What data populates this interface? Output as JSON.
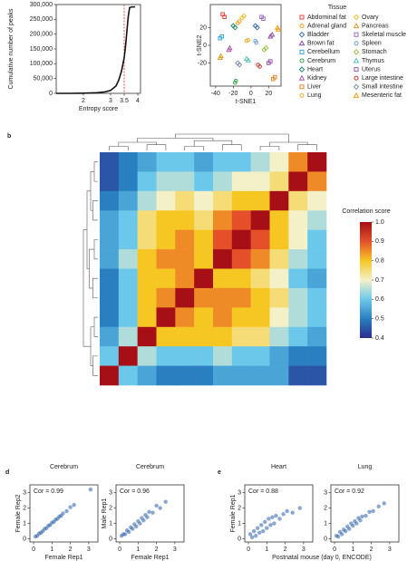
{
  "chart_data": [
    {
      "type": "line",
      "x_label": "Entropy score",
      "y_label": "Cumulative number of peaks",
      "x": [
        1,
        1.5,
        2,
        2.5,
        2.8,
        3,
        3.2,
        3.3,
        3.4,
        3.5,
        3.55,
        3.6,
        3.65,
        3.7,
        3.8,
        3.9
      ],
      "y": [
        0,
        0,
        500,
        2000,
        5000,
        10000,
        25000,
        45000,
        75000,
        120000,
        160000,
        210000,
        260000,
        290000,
        292000,
        292000
      ],
      "color": "#111111",
      "xlim": [
        1,
        4.1
      ],
      "ylim": [
        0,
        300000
      ],
      "xticks": [
        2,
        3,
        3.5,
        4
      ],
      "yticks": [
        0,
        {
          "value": 50000,
          "label": "50,000"
        },
        {
          "value": 100000,
          "label": "100,000"
        },
        {
          "value": 150000,
          "label": "150,000"
        },
        {
          "value": 200000,
          "label": "200,000"
        },
        {
          "value": 250000,
          "label": "250,000"
        },
        {
          "value": 300000,
          "label": "300,000"
        }
      ],
      "vline": 3.5,
      "vline_color": "#e0402a"
    },
    {
      "type": "scatter",
      "x_label": "t-SNE1",
      "y_label": "t-SNE2",
      "legend_title": "Tissue",
      "xlim": [
        -46,
        34
      ],
      "ylim": [
        -46,
        46
      ],
      "xticks": [
        -40,
        -20,
        0,
        20
      ],
      "yticks": [
        -20,
        0,
        20
      ],
      "series": [
        {
          "name": "Abdominal fat",
          "color": "#e8423f",
          "marker": "square",
          "x": [
            -32,
            -30
          ],
          "y": [
            35,
            32
          ]
        },
        {
          "name": "Adrenal gland",
          "color": "#f4a11f",
          "marker": "circle",
          "x": [
            -15,
            -13
          ],
          "y": [
            25,
            27
          ]
        },
        {
          "name": "Bladder",
          "color": "#3e6fb0",
          "marker": "diamond",
          "x": [
            5,
            7
          ],
          "y": [
            22,
            20
          ]
        },
        {
          "name": "Brown fat",
          "color": "#8c4fa0",
          "marker": "triangle",
          "x": [
            22,
            24
          ],
          "y": [
            10,
            12
          ]
        },
        {
          "name": "Cerebellum",
          "color": "#3aa6dd",
          "marker": "square",
          "x": [
            -35,
            -33
          ],
          "y": [
            8,
            10
          ]
        },
        {
          "name": "Cerebrum",
          "color": "#3aa655",
          "marker": "circle",
          "x": [
            -18,
            -17
          ],
          "y": [
            -42,
            -40
          ]
        },
        {
          "name": "Heart",
          "color": "#1f8a70",
          "marker": "diamond",
          "x": [
            -20,
            -18
          ],
          "y": [
            22,
            20
          ]
        },
        {
          "name": "Kidney",
          "color": "#a45ca8",
          "marker": "triangle",
          "x": [
            -25,
            -24
          ],
          "y": [
            -5,
            -3
          ]
        },
        {
          "name": "Liver",
          "color": "#e08a2b",
          "marker": "square",
          "x": [
            25,
            27
          ],
          "y": [
            -38,
            -36
          ]
        },
        {
          "name": "Lung",
          "color": "#f0b030",
          "marker": "circle",
          "x": [
            -5,
            -3
          ],
          "y": [
            5,
            6
          ]
        },
        {
          "name": "Ovary",
          "color": "#f2c12e",
          "marker": "diamond",
          "x": [
            -8,
            -10
          ],
          "y": [
            33,
            31
          ]
        },
        {
          "name": "Pancreas",
          "color": "#d9a02c",
          "marker": "triangle",
          "x": [
            -35,
            -34
          ],
          "y": [
            -14,
            -12
          ]
        },
        {
          "name": "Skeletal muscle",
          "color": "#9a6fc0",
          "marker": "square",
          "x": [
            12,
            14
          ],
          "y": [
            32,
            30
          ]
        },
        {
          "name": "Spleen",
          "color": "#6fa0d0",
          "marker": "circle",
          "x": [
            5,
            6
          ],
          "y": [
            5,
            3
          ]
        },
        {
          "name": "Stomach",
          "color": "#9ec04a",
          "marker": "diamond",
          "x": [
            15,
            17
          ],
          "y": [
            -5,
            -3
          ]
        },
        {
          "name": "Thymus",
          "color": "#5fc0c0",
          "marker": "triangle",
          "x": [
            -5,
            -3
          ],
          "y": [
            -15,
            -17
          ]
        },
        {
          "name": "Uterus",
          "color": "#9b59b6",
          "marker": "square",
          "x": [
            20,
            22
          ],
          "y": [
            -20,
            -18
          ]
        },
        {
          "name": "Large intestine",
          "color": "#c0392b",
          "marker": "circle",
          "x": [
            8,
            10
          ],
          "y": [
            -22,
            -24
          ]
        },
        {
          "name": "Small intestine",
          "color": "#7f8fa6",
          "marker": "diamond",
          "x": [
            -15,
            -13
          ],
          "y": [
            -20,
            -22
          ]
        },
        {
          "name": "Mesenteric fat",
          "color": "#f39c12",
          "marker": "triangle",
          "x": [
            30,
            31
          ],
          "y": [
            20,
            18
          ]
        }
      ]
    },
    {
      "type": "heatmap",
      "panel": "b",
      "colorbar_title": "Correlation score",
      "clim": [
        0.4,
        1
      ],
      "colorscale": [
        "#2b2d8f",
        "#2a7fc1",
        "#6cc8ea",
        "#f4f1c8",
        "#f6c623",
        "#e5502a",
        "#a50f15"
      ],
      "cticks": [
        {
          "value": 1,
          "label": "1.0"
        },
        0.9,
        0.8,
        0.7,
        0.6,
        0.5,
        0.4
      ],
      "z": [
        [
          0.45,
          0.5,
          0.55,
          0.6,
          0.6,
          0.55,
          0.6,
          0.6,
          0.65,
          0.7,
          0.85,
          1
        ],
        [
          0.45,
          0.5,
          0.6,
          0.65,
          0.65,
          0.6,
          0.65,
          0.7,
          0.7,
          0.75,
          1,
          0.85
        ],
        [
          0.5,
          0.55,
          0.65,
          0.7,
          0.75,
          0.7,
          0.75,
          0.8,
          0.8,
          1,
          0.75,
          0.7
        ],
        [
          0.55,
          0.6,
          0.75,
          0.8,
          0.8,
          0.75,
          0.85,
          0.9,
          1,
          0.8,
          0.7,
          0.65
        ],
        [
          0.55,
          0.6,
          0.75,
          0.8,
          0.85,
          0.8,
          0.9,
          1,
          0.9,
          0.8,
          0.7,
          0.6
        ],
        [
          0.55,
          0.65,
          0.8,
          0.85,
          0.85,
          0.8,
          1,
          0.9,
          0.85,
          0.75,
          0.65,
          0.6
        ],
        [
          0.5,
          0.6,
          0.8,
          0.8,
          0.85,
          1,
          0.8,
          0.8,
          0.75,
          0.7,
          0.6,
          0.55
        ],
        [
          0.5,
          0.6,
          0.8,
          0.85,
          1,
          0.85,
          0.85,
          0.85,
          0.8,
          0.75,
          0.65,
          0.6
        ],
        [
          0.5,
          0.6,
          0.8,
          1,
          0.85,
          0.8,
          0.85,
          0.8,
          0.8,
          0.7,
          0.65,
          0.6
        ],
        [
          0.55,
          0.65,
          1,
          0.8,
          0.8,
          0.8,
          0.8,
          0.75,
          0.75,
          0.65,
          0.6,
          0.55
        ],
        [
          0.6,
          1,
          0.65,
          0.6,
          0.6,
          0.6,
          0.65,
          0.6,
          0.6,
          0.55,
          0.5,
          0.5
        ],
        [
          1,
          0.6,
          0.55,
          0.5,
          0.5,
          0.5,
          0.55,
          0.55,
          0.55,
          0.55,
          0.45,
          0.45
        ]
      ]
    },
    {
      "type": "scatter",
      "panel": "d",
      "title": "Cerebrum",
      "annotation": "Cor = 0.99",
      "x_label": "Female Rep1",
      "y_label": "Female Rep2",
      "color": "#2a5ea8",
      "xlim": [
        -0.2,
        3.5
      ],
      "ylim": [
        -0.2,
        3.5
      ],
      "xticks": [
        0,
        1,
        2,
        3
      ],
      "yticks": [
        0,
        1,
        2,
        3
      ],
      "x": [
        0.1,
        0.2,
        0.3,
        0.4,
        0.5,
        0.6,
        0.7,
        0.8,
        0.9,
        1.0,
        1.1,
        1.2,
        1.3,
        1.4,
        1.5,
        1.6,
        1.8,
        2.0,
        2.2,
        3.1
      ],
      "y": [
        0.15,
        0.2,
        0.35,
        0.4,
        0.5,
        0.65,
        0.7,
        0.85,
        0.9,
        1.05,
        1.1,
        1.25,
        1.3,
        1.45,
        1.5,
        1.65,
        1.8,
        2.05,
        2.2,
        3.2
      ]
    },
    {
      "type": "scatter",
      "title": "Cerebrum",
      "annotation": "Cor = 0.96",
      "x_label": "Female Rep1",
      "y_label": "Male Rep1",
      "color": "#2a5ea8",
      "xlim": [
        -0.2,
        3.5
      ],
      "ylim": [
        -0.2,
        3.5
      ],
      "xticks": [
        0,
        1,
        2,
        3
      ],
      "yticks": [
        0,
        1,
        2,
        3
      ],
      "x": [
        0.1,
        0.2,
        0.3,
        0.4,
        0.5,
        0.6,
        0.7,
        0.8,
        0.9,
        1.0,
        1.1,
        1.2,
        1.3,
        1.4,
        1.5,
        1.6,
        1.8,
        2.0,
        2.2,
        2.5
      ],
      "y": [
        0.2,
        0.3,
        0.3,
        0.55,
        0.45,
        0.75,
        0.65,
        0.95,
        0.8,
        1.15,
        1.0,
        1.35,
        1.2,
        1.55,
        1.4,
        1.75,
        1.7,
        2.15,
        2.0,
        2.4
      ]
    },
    {
      "type": "scatter",
      "panel": "e",
      "title": "Heart",
      "annotation": "Cor = 0.88",
      "x_label": "Postnatal mouse (day 0, ENCODE)",
      "y_label": "Female Rep1",
      "color": "#2a5ea8",
      "xlim": [
        -0.2,
        3.5
      ],
      "ylim": [
        -0.2,
        3.5
      ],
      "xticks": [
        0,
        1,
        2,
        3
      ],
      "yticks": [
        0,
        1,
        2,
        3
      ],
      "x": [
        0.1,
        0.2,
        0.3,
        0.4,
        0.5,
        0.6,
        0.7,
        0.8,
        0.9,
        1.0,
        1.1,
        1.2,
        1.3,
        1.4,
        1.5,
        1.7,
        1.9,
        2.1,
        2.4,
        2.8
      ],
      "y": [
        0.3,
        0.1,
        0.5,
        0.2,
        0.7,
        0.4,
        0.9,
        0.5,
        1.1,
        0.7,
        1.3,
        0.9,
        1.4,
        1.0,
        1.5,
        1.3,
        1.6,
        1.8,
        1.7,
        2.0
      ]
    },
    {
      "type": "scatter",
      "title": "Lung",
      "annotation": "Cor = 0.92",
      "color": "#2a5ea8",
      "xlim": [
        -0.2,
        3.5
      ],
      "ylim": [
        -0.2,
        3.5
      ],
      "xticks": [
        0,
        1,
        2,
        3
      ],
      "yticks": [
        0,
        1,
        2,
        3
      ],
      "x": [
        0.1,
        0.2,
        0.3,
        0.4,
        0.5,
        0.6,
        0.7,
        0.8,
        0.9,
        1.0,
        1.1,
        1.2,
        1.3,
        1.4,
        1.5,
        1.7,
        1.9,
        2.1,
        2.4,
        2.7
      ],
      "y": [
        0.2,
        0.15,
        0.45,
        0.3,
        0.6,
        0.5,
        0.8,
        0.65,
        1.0,
        0.85,
        1.15,
        1.0,
        1.35,
        1.2,
        1.45,
        1.5,
        1.75,
        1.8,
        2.1,
        2.3
      ]
    }
  ]
}
